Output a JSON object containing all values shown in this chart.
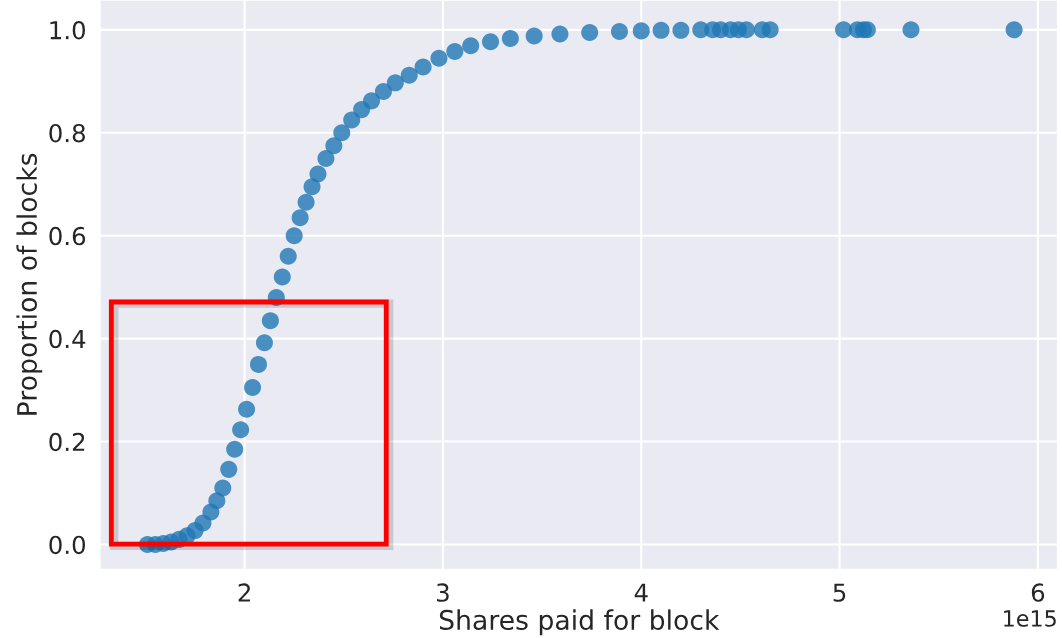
{
  "chart_data": {
    "type": "scatter",
    "xlabel": "Shares paid for block",
    "ylabel": "Proportion of blocks",
    "x": [
      1.51,
      1.55,
      1.59,
      1.63,
      1.67,
      1.71,
      1.75,
      1.79,
      1.83,
      1.86,
      1.89,
      1.92,
      1.95,
      1.98,
      2.01,
      2.04,
      2.07,
      2.1,
      2.13,
      2.16,
      2.19,
      2.22,
      2.25,
      2.28,
      2.31,
      2.34,
      2.37,
      2.41,
      2.45,
      2.49,
      2.54,
      2.59,
      2.64,
      2.7,
      2.76,
      2.83,
      2.9,
      2.98,
      3.06,
      3.14,
      3.24,
      3.34,
      3.46,
      3.59,
      3.74,
      3.89,
      4.0,
      4.1,
      4.2,
      4.3,
      4.36,
      4.4,
      4.45,
      4.49,
      4.53,
      4.61,
      4.65,
      5.02,
      5.09,
      5.12,
      5.14,
      5.36,
      5.88
    ],
    "values": [
      0.0,
      0.0,
      0.002,
      0.005,
      0.01,
      0.017,
      0.027,
      0.042,
      0.063,
      0.085,
      0.11,
      0.146,
      0.185,
      0.223,
      0.263,
      0.305,
      0.35,
      0.392,
      0.435,
      0.48,
      0.52,
      0.56,
      0.6,
      0.635,
      0.665,
      0.695,
      0.72,
      0.75,
      0.775,
      0.8,
      0.825,
      0.845,
      0.862,
      0.88,
      0.897,
      0.912,
      0.928,
      0.945,
      0.958,
      0.969,
      0.977,
      0.983,
      0.988,
      0.992,
      0.995,
      0.997,
      0.998,
      0.999,
      0.999,
      1.0,
      1.0,
      1.0,
      1.0,
      1.0,
      1.0,
      1.0,
      1.0,
      1.0,
      1.0,
      1.0,
      1.0,
      1.0,
      1.0
    ],
    "color": "#1f77b4",
    "marker": "circle",
    "grid": true,
    "legend": false,
    "xlim": [
      1.27,
      6.1
    ],
    "ylim": [
      -0.049,
      1.058
    ],
    "xticks": [
      2,
      3,
      4,
      5,
      6
    ],
    "yticks": [
      {
        "value": 0,
        "label": "0.0"
      },
      {
        "value": 0.2,
        "label": "0.2"
      },
      {
        "value": 0.4,
        "label": "0.4"
      },
      {
        "value": 0.6,
        "label": "0.6"
      },
      {
        "value": 0.8,
        "label": "0.8"
      },
      {
        "value": 1.0,
        "label": "1.0"
      }
    ],
    "annotations": [
      "1e15"
    ]
  }
}
